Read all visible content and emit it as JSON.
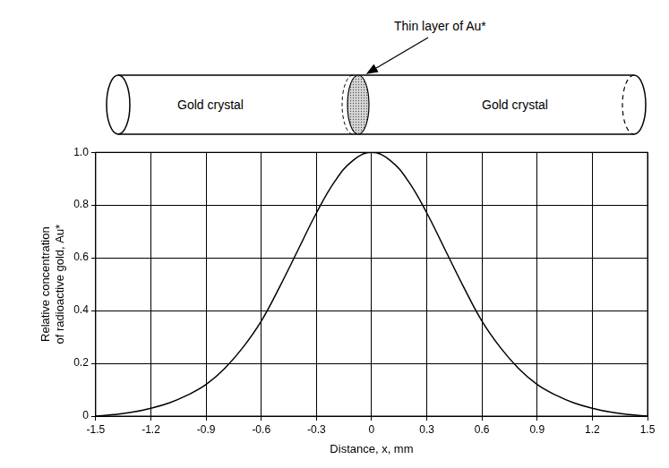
{
  "diagram": {
    "annotation": "Thin layer of Au*",
    "left_label": "Gold crystal",
    "right_label": "Gold crystal"
  },
  "chart_data": {
    "type": "line",
    "x_label": "Distance, x, mm",
    "y_label": "Relative concentration of radioactive gold, Au*",
    "x": [
      -1.5,
      -1.4,
      -1.3,
      -1.2,
      -1.1,
      -1.0,
      -0.9,
      -0.8,
      -0.7,
      -0.6,
      -0.5,
      -0.4,
      -0.3,
      -0.2,
      -0.1,
      0,
      0.1,
      0.2,
      0.3,
      0.4,
      0.5,
      0.6,
      0.7,
      0.8,
      0.9,
      1.0,
      1.1,
      1.2,
      1.3,
      1.4,
      1.5
    ],
    "values": [
      0.0,
      0.006,
      0.015,
      0.03,
      0.05,
      0.08,
      0.12,
      0.18,
      0.26,
      0.36,
      0.49,
      0.63,
      0.77,
      0.89,
      0.97,
      1.0,
      0.97,
      0.89,
      0.77,
      0.63,
      0.49,
      0.36,
      0.26,
      0.18,
      0.12,
      0.08,
      0.05,
      0.03,
      0.015,
      0.006,
      0.0
    ],
    "color": "#000000",
    "xlim": [
      -1.5,
      1.5
    ],
    "xticks": [
      -1.5,
      -1.2,
      -0.9,
      -0.6,
      -0.3,
      0,
      0.3,
      0.6,
      0.9,
      1.2,
      1.5
    ],
    "ylim": [
      0,
      1
    ],
    "yticks": [
      0,
      0.2,
      0.4,
      0.6,
      0.8,
      {
        "value": 1,
        "label": "1.0"
      }
    ],
    "grid": true
  }
}
